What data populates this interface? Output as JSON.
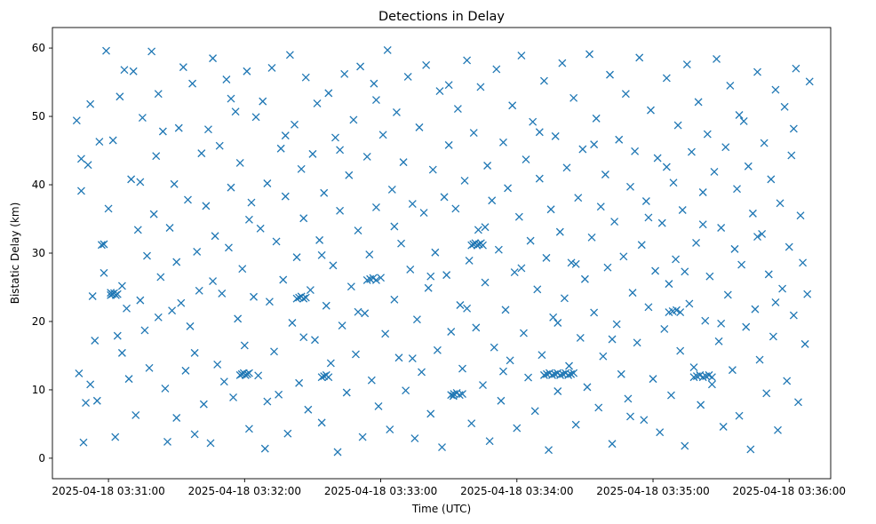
{
  "chart_data": {
    "type": "scatter",
    "title": "Detections in Delay",
    "xlabel": "Time (UTC)",
    "ylabel": "Bistatic Delay (km)",
    "marker": "x",
    "color": "#1f77b4",
    "x_ticks": [
      {
        "label": "2025-04-18 03:31:00",
        "value": 60
      },
      {
        "label": "2025-04-18 03:32:00",
        "value": 120
      },
      {
        "label": "2025-04-18 03:33:00",
        "value": 180
      },
      {
        "label": "2025-04-18 03:34:00",
        "value": 240
      },
      {
        "label": "2025-04-18 03:35:00",
        "value": 300
      },
      {
        "label": "2025-04-18 03:36:00",
        "value": 360
      }
    ],
    "y_ticks": [
      0,
      10,
      20,
      30,
      40,
      50,
      60
    ],
    "xlim_seconds_after_03_30": [
      35.3,
      378.3
    ],
    "ylim": [
      -3,
      63
    ],
    "x_unit": "seconds after 2025-04-18 03:30:00",
    "clusters": [
      {
        "x0": 61,
        "x1": 64,
        "y": 24.0,
        "count": 5
      },
      {
        "x0": 143,
        "x1": 147,
        "y": 23.5,
        "count": 5
      },
      {
        "x0": 118,
        "x1": 122,
        "y": 12.3,
        "count": 6
      },
      {
        "x0": 154,
        "x1": 157,
        "y": 12.0,
        "count": 4
      },
      {
        "x0": 220,
        "x1": 225,
        "y": 31.3,
        "count": 7
      },
      {
        "x0": 211,
        "x1": 216,
        "y": 9.4,
        "count": 5
      },
      {
        "x0": 252,
        "x1": 265,
        "y": 12.3,
        "count": 12
      },
      {
        "x0": 307,
        "x1": 312,
        "y": 21.5,
        "count": 4
      },
      {
        "x0": 318,
        "x1": 326,
        "y": 12.0,
        "count": 7
      },
      {
        "x0": 174,
        "x1": 178,
        "y": 26.2,
        "count": 4
      }
    ],
    "points": [
      [
        46,
        49.4
      ],
      [
        47,
        12.4
      ],
      [
        48,
        43.8
      ],
      [
        49,
        2.3
      ],
      [
        50,
        8.1
      ],
      [
        51,
        42.9
      ],
      [
        52,
        51.8
      ],
      [
        53,
        23.7
      ],
      [
        54,
        17.2
      ],
      [
        55,
        8.4
      ],
      [
        56,
        46.3
      ],
      [
        57,
        31.2
      ],
      [
        58,
        27.1
      ],
      [
        59,
        59.6
      ],
      [
        60,
        36.5
      ],
      [
        61,
        24.2
      ],
      [
        62,
        46.5
      ],
      [
        63,
        3.1
      ],
      [
        64,
        17.9
      ],
      [
        65,
        52.9
      ],
      [
        66,
        25.2
      ],
      [
        67,
        56.8
      ],
      [
        68,
        21.9
      ],
      [
        69,
        11.6
      ],
      [
        70,
        40.8
      ],
      [
        71,
        56.6
      ],
      [
        72,
        6.3
      ],
      [
        73,
        33.4
      ],
      [
        74,
        23.1
      ],
      [
        75,
        49.8
      ],
      [
        76,
        18.7
      ],
      [
        77,
        29.6
      ],
      [
        78,
        13.2
      ],
      [
        79,
        59.5
      ],
      [
        80,
        35.7
      ],
      [
        81,
        44.2
      ],
      [
        82,
        20.6
      ],
      [
        83,
        26.5
      ],
      [
        84,
        47.8
      ],
      [
        85,
        10.2
      ],
      [
        86,
        2.4
      ],
      [
        87,
        33.7
      ],
      [
        88,
        21.6
      ],
      [
        89,
        40.1
      ],
      [
        90,
        5.9
      ],
      [
        91,
        48.3
      ],
      [
        92,
        22.7
      ],
      [
        93,
        57.2
      ],
      [
        94,
        12.8
      ],
      [
        95,
        37.8
      ],
      [
        96,
        19.3
      ],
      [
        97,
        54.8
      ],
      [
        98,
        15.4
      ],
      [
        99,
        30.2
      ],
      [
        100,
        24.5
      ],
      [
        101,
        44.6
      ],
      [
        102,
        7.9
      ],
      [
        103,
        36.9
      ],
      [
        104,
        48.1
      ],
      [
        105,
        2.2
      ],
      [
        106,
        58.5
      ],
      [
        107,
        32.5
      ],
      [
        108,
        13.7
      ],
      [
        109,
        45.7
      ],
      [
        110,
        24.1
      ],
      [
        111,
        11.2
      ],
      [
        112,
        55.4
      ],
      [
        113,
        30.8
      ],
      [
        114,
        39.6
      ],
      [
        115,
        8.9
      ],
      [
        116,
        50.7
      ],
      [
        117,
        20.4
      ],
      [
        118,
        43.2
      ],
      [
        119,
        27.7
      ],
      [
        120,
        16.5
      ],
      [
        121,
        56.6
      ],
      [
        122,
        4.3
      ],
      [
        123,
        37.4
      ],
      [
        124,
        23.6
      ],
      [
        125,
        49.9
      ],
      [
        126,
        12.1
      ],
      [
        127,
        33.6
      ],
      [
        128,
        52.2
      ],
      [
        129,
        1.4
      ],
      [
        130,
        40.2
      ],
      [
        131,
        22.9
      ],
      [
        132,
        57.1
      ],
      [
        133,
        15.6
      ],
      [
        134,
        31.7
      ],
      [
        135,
        9.3
      ],
      [
        136,
        45.3
      ],
      [
        137,
        26.1
      ],
      [
        138,
        38.3
      ],
      [
        139,
        3.6
      ],
      [
        140,
        59.0
      ],
      [
        141,
        19.8
      ],
      [
        142,
        48.8
      ],
      [
        143,
        29.4
      ],
      [
        144,
        11.0
      ],
      [
        145,
        42.3
      ],
      [
        146,
        35.1
      ],
      [
        147,
        55.7
      ],
      [
        148,
        7.1
      ],
      [
        149,
        24.6
      ],
      [
        150,
        44.5
      ],
      [
        151,
        17.3
      ],
      [
        152,
        51.9
      ],
      [
        153,
        31.9
      ],
      [
        154,
        5.2
      ],
      [
        155,
        38.8
      ],
      [
        156,
        22.3
      ],
      [
        157,
        53.4
      ],
      [
        158,
        13.9
      ],
      [
        159,
        28.2
      ],
      [
        160,
        46.9
      ],
      [
        161,
        0.9
      ],
      [
        162,
        36.2
      ],
      [
        163,
        19.4
      ],
      [
        164,
        56.2
      ],
      [
        165,
        9.6
      ],
      [
        166,
        41.4
      ],
      [
        167,
        25.1
      ],
      [
        168,
        49.5
      ],
      [
        169,
        15.2
      ],
      [
        170,
        33.3
      ],
      [
        171,
        57.3
      ],
      [
        172,
        3.1
      ],
      [
        173,
        21.2
      ],
      [
        174,
        44.1
      ],
      [
        175,
        29.8
      ],
      [
        176,
        11.4
      ],
      [
        177,
        54.8
      ],
      [
        178,
        36.7
      ],
      [
        179,
        7.6
      ],
      [
        180,
        26.4
      ],
      [
        181,
        47.3
      ],
      [
        182,
        18.2
      ],
      [
        183,
        59.7
      ],
      [
        184,
        4.2
      ],
      [
        185,
        39.3
      ],
      [
        186,
        23.2
      ],
      [
        187,
        50.6
      ],
      [
        188,
        14.7
      ],
      [
        189,
        31.4
      ],
      [
        190,
        43.3
      ],
      [
        191,
        9.9
      ],
      [
        192,
        55.8
      ],
      [
        193,
        27.6
      ],
      [
        194,
        37.2
      ],
      [
        195,
        2.9
      ],
      [
        196,
        20.3
      ],
      [
        197,
        48.4
      ],
      [
        198,
        12.6
      ],
      [
        199,
        35.9
      ],
      [
        200,
        57.5
      ],
      [
        201,
        24.9
      ],
      [
        202,
        6.5
      ],
      [
        203,
        42.2
      ],
      [
        204,
        30.1
      ],
      [
        205,
        15.8
      ],
      [
        206,
        53.7
      ],
      [
        207,
        1.6
      ],
      [
        208,
        38.2
      ],
      [
        209,
        26.8
      ],
      [
        210,
        45.8
      ],
      [
        211,
        18.5
      ],
      [
        212,
        9.1
      ],
      [
        213,
        36.5
      ],
      [
        214,
        51.1
      ],
      [
        215,
        22.4
      ],
      [
        216,
        13.1
      ],
      [
        217,
        40.6
      ],
      [
        218,
        58.2
      ],
      [
        219,
        28.9
      ],
      [
        220,
        5.1
      ],
      [
        221,
        47.6
      ],
      [
        222,
        19.1
      ],
      [
        223,
        33.4
      ],
      [
        224,
        54.3
      ],
      [
        225,
        10.7
      ],
      [
        226,
        25.7
      ],
      [
        227,
        42.8
      ],
      [
        228,
        2.5
      ],
      [
        229,
        37.7
      ],
      [
        230,
        16.2
      ],
      [
        231,
        56.9
      ],
      [
        232,
        30.5
      ],
      [
        233,
        8.4
      ],
      [
        234,
        46.2
      ],
      [
        235,
        21.7
      ],
      [
        236,
        39.5
      ],
      [
        237,
        14.3
      ],
      [
        238,
        51.6
      ],
      [
        239,
        27.2
      ],
      [
        240,
        4.4
      ],
      [
        241,
        35.3
      ],
      [
        242,
        58.9
      ],
      [
        243,
        18.3
      ],
      [
        244,
        43.7
      ],
      [
        245,
        11.8
      ],
      [
        246,
        31.8
      ],
      [
        247,
        49.2
      ],
      [
        248,
        6.9
      ],
      [
        249,
        24.7
      ],
      [
        250,
        40.9
      ],
      [
        251,
        15.1
      ],
      [
        252,
        55.2
      ],
      [
        253,
        29.3
      ],
      [
        254,
        1.2
      ],
      [
        255,
        36.4
      ],
      [
        256,
        20.6
      ],
      [
        257,
        47.1
      ],
      [
        258,
        9.8
      ],
      [
        259,
        33.1
      ],
      [
        260,
        57.8
      ],
      [
        261,
        23.4
      ],
      [
        262,
        42.5
      ],
      [
        263,
        13.5
      ],
      [
        264,
        28.6
      ],
      [
        265,
        52.7
      ],
      [
        266,
        4.9
      ],
      [
        267,
        38.1
      ],
      [
        268,
        17.6
      ],
      [
        269,
        45.2
      ],
      [
        270,
        26.2
      ],
      [
        271,
        10.4
      ],
      [
        272,
        59.1
      ],
      [
        273,
        32.3
      ],
      [
        274,
        21.3
      ],
      [
        275,
        49.7
      ],
      [
        276,
        7.4
      ],
      [
        277,
        36.8
      ],
      [
        278,
        14.9
      ],
      [
        279,
        41.5
      ],
      [
        280,
        27.9
      ],
      [
        281,
        56.1
      ],
      [
        282,
        2.1
      ],
      [
        283,
        34.6
      ],
      [
        284,
        19.6
      ],
      [
        285,
        46.6
      ],
      [
        286,
        12.3
      ],
      [
        287,
        29.5
      ],
      [
        288,
        53.3
      ],
      [
        289,
        8.7
      ],
      [
        290,
        39.7
      ],
      [
        291,
        24.2
      ],
      [
        292,
        44.9
      ],
      [
        293,
        16.9
      ],
      [
        294,
        58.6
      ],
      [
        295,
        31.2
      ],
      [
        296,
        5.6
      ],
      [
        297,
        37.6
      ],
      [
        298,
        22.1
      ],
      [
        299,
        50.9
      ],
      [
        300,
        11.6
      ],
      [
        301,
        27.4
      ],
      [
        302,
        43.9
      ],
      [
        303,
        3.8
      ],
      [
        304,
        34.4
      ],
      [
        305,
        18.9
      ],
      [
        306,
        55.6
      ],
      [
        307,
        25.5
      ],
      [
        308,
        9.2
      ],
      [
        309,
        40.3
      ],
      [
        310,
        29.1
      ],
      [
        311,
        48.7
      ],
      [
        312,
        15.7
      ],
      [
        313,
        36.3
      ],
      [
        314,
        1.8
      ],
      [
        315,
        57.6
      ],
      [
        316,
        22.6
      ],
      [
        317,
        44.8
      ],
      [
        318,
        13.3
      ],
      [
        319,
        31.5
      ],
      [
        320,
        52.1
      ],
      [
        321,
        7.8
      ],
      [
        322,
        38.9
      ],
      [
        323,
        20.1
      ],
      [
        324,
        47.4
      ],
      [
        325,
        26.6
      ],
      [
        326,
        10.8
      ],
      [
        327,
        41.9
      ],
      [
        328,
        58.4
      ],
      [
        329,
        17.1
      ],
      [
        330,
        33.7
      ],
      [
        331,
        4.6
      ],
      [
        332,
        45.5
      ],
      [
        333,
        23.9
      ],
      [
        334,
        54.5
      ],
      [
        335,
        12.9
      ],
      [
        336,
        30.6
      ],
      [
        337,
        39.4
      ],
      [
        338,
        6.2
      ],
      [
        339,
        28.3
      ],
      [
        340,
        49.3
      ],
      [
        341,
        19.2
      ],
      [
        342,
        42.7
      ],
      [
        343,
        1.3
      ],
      [
        344,
        35.8
      ],
      [
        345,
        21.8
      ],
      [
        346,
        56.5
      ],
      [
        347,
        14.4
      ],
      [
        348,
        32.8
      ],
      [
        349,
        46.1
      ],
      [
        350,
        9.5
      ],
      [
        351,
        26.9
      ],
      [
        352,
        40.8
      ],
      [
        353,
        17.8
      ],
      [
        354,
        53.9
      ],
      [
        355,
        4.1
      ],
      [
        356,
        37.3
      ],
      [
        357,
        24.8
      ],
      [
        358,
        51.4
      ],
      [
        359,
        11.3
      ],
      [
        360,
        30.9
      ],
      [
        361,
        44.3
      ],
      [
        362,
        20.9
      ],
      [
        363,
        57.0
      ],
      [
        364,
        8.2
      ],
      [
        365,
        35.5
      ],
      [
        48,
        39.1
      ],
      [
        52,
        10.8
      ],
      [
        58,
        31.3
      ],
      [
        66,
        15.4
      ],
      [
        74,
        40.4
      ],
      [
        82,
        53.3
      ],
      [
        90,
        28.7
      ],
      [
        98,
        3.5
      ],
      [
        106,
        25.9
      ],
      [
        114,
        52.6
      ],
      [
        122,
        34.9
      ],
      [
        130,
        8.3
      ],
      [
        138,
        47.2
      ],
      [
        146,
        17.7
      ],
      [
        154,
        29.7
      ],
      [
        162,
        45.1
      ],
      [
        170,
        21.4
      ],
      [
        178,
        52.4
      ],
      [
        186,
        33.9
      ],
      [
        194,
        14.6
      ],
      [
        202,
        26.6
      ],
      [
        210,
        54.6
      ],
      [
        218,
        21.9
      ],
      [
        226,
        33.8
      ],
      [
        234,
        12.7
      ],
      [
        242,
        27.8
      ],
      [
        250,
        47.7
      ],
      [
        258,
        19.8
      ],
      [
        266,
        28.4
      ],
      [
        274,
        45.9
      ],
      [
        282,
        17.4
      ],
      [
        290,
        6.1
      ],
      [
        298,
        35.2
      ],
      [
        306,
        42.6
      ],
      [
        314,
        27.3
      ],
      [
        322,
        34.2
      ],
      [
        330,
        19.7
      ],
      [
        338,
        50.2
      ],
      [
        346,
        32.4
      ],
      [
        354,
        22.8
      ],
      [
        362,
        48.2
      ],
      [
        366,
        28.6
      ],
      [
        367,
        16.7
      ],
      [
        368,
        24.0
      ],
      [
        369,
        55.1
      ]
    ]
  }
}
